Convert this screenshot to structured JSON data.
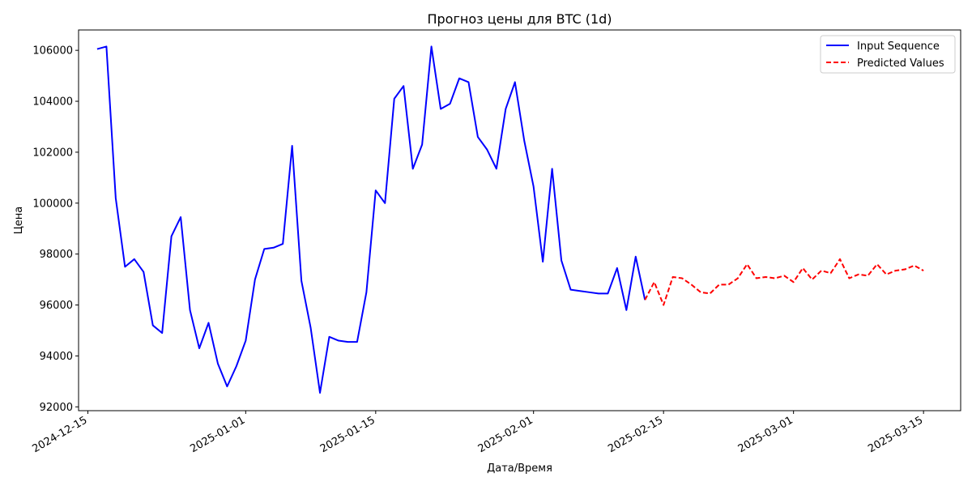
{
  "chart_data": {
    "type": "line",
    "title": "Прогноз цены для BTC (1d)",
    "xlabel": "Дата/Время",
    "ylabel": "Цена",
    "xlim": [
      "2024-12-14",
      "2025-03-19"
    ],
    "ylim": [
      91850,
      106800
    ],
    "grid": false,
    "legend_position": "top-right",
    "x_ticks": [
      "2024-12-15",
      "2025-01-01",
      "2025-01-15",
      "2025-02-01",
      "2025-02-15",
      "2025-03-01",
      "2025-03-15"
    ],
    "y_ticks": [
      92000,
      94000,
      96000,
      98000,
      100000,
      102000,
      104000,
      106000
    ],
    "series": [
      {
        "name": "Input Sequence",
        "color": "#0000ff",
        "dash": "solid",
        "start_date": "2024-12-16",
        "values": [
          106050,
          106150,
          100200,
          97500,
          97800,
          97300,
          95200,
          94900,
          98700,
          99450,
          95800,
          94300,
          95300,
          93700,
          92800,
          93600,
          94600,
          97000,
          98200,
          98250,
          98400,
          102250,
          96950,
          95100,
          92550,
          94750,
          94600,
          94550,
          94550,
          96500,
          100500,
          100000,
          104100,
          104600,
          101350,
          102300,
          106150,
          103700,
          103900,
          104900,
          104750,
          102600,
          102100,
          101350,
          103700,
          104750,
          102450,
          100650,
          97700,
          101350,
          97750,
          96600,
          96550,
          96500,
          96450,
          96450,
          97450,
          95800,
          97900,
          96200
        ]
      },
      {
        "name": "Predicted Values",
        "color": "#ff0000",
        "dash": "dashed",
        "start_date": "2025-02-13",
        "values": [
          96200,
          96900,
          96000,
          97100,
          97050,
          96800,
          96500,
          96450,
          96800,
          96800,
          97050,
          97600,
          97050,
          97100,
          97050,
          97150,
          96900,
          97450,
          97000,
          97350,
          97250,
          97800,
          97050,
          97200,
          97150,
          97600,
          97200,
          97350,
          97400,
          97550,
          97350
        ]
      }
    ]
  }
}
